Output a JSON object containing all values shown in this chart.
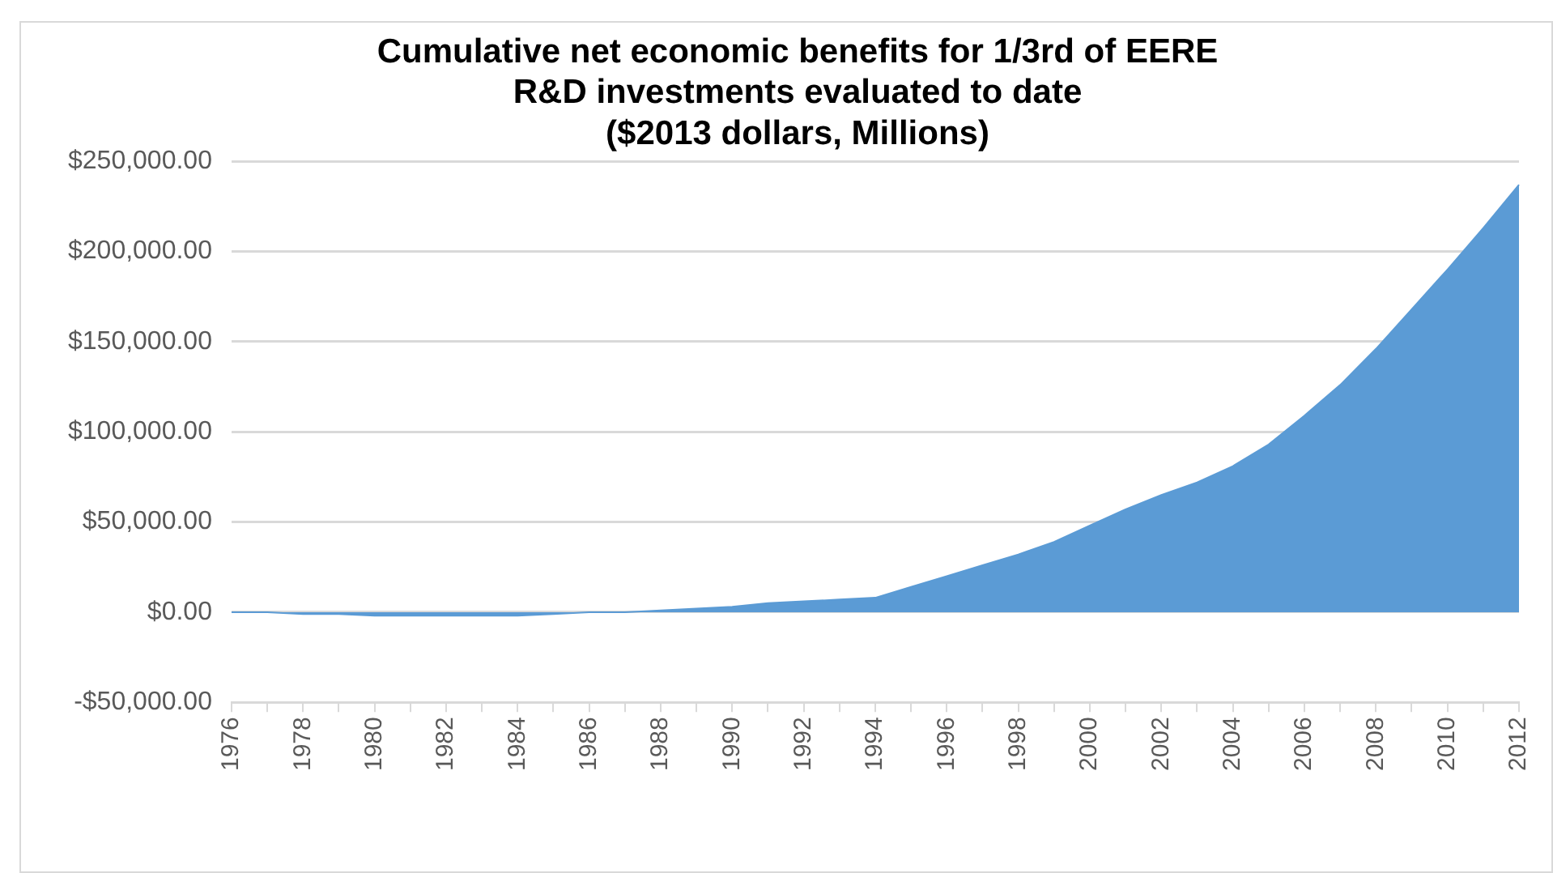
{
  "chart_data": {
    "type": "area",
    "title": [
      "Cumulative net economic benefits for 1/3rd of EERE",
      "R&D investments evaluated to date",
      "($2013 dollars, Millions)"
    ],
    "categories": [
      "1976",
      null,
      "1978",
      null,
      "1980",
      null,
      "1982",
      null,
      "1984",
      null,
      "1986",
      null,
      "1988",
      null,
      "1990",
      null,
      "1992",
      null,
      "1994",
      null,
      "1996",
      null,
      "1998",
      null,
      "2000",
      null,
      "2002",
      null,
      "2004",
      null,
      "2006",
      null,
      "2008",
      null,
      "2010",
      null,
      "2012"
    ],
    "series": [
      {
        "color": "#5b9bd5",
        "values": [
          0,
          0,
          -1000,
          -1000,
          -2000,
          -2000,
          -2000,
          -2000,
          -2000,
          -1000,
          0,
          0,
          1000,
          2000,
          3000,
          5000,
          6000,
          7000,
          8000,
          14000,
          20000,
          26000,
          32000,
          39000,
          48000,
          57000,
          65000,
          72000,
          81000,
          93000,
          109000,
          126000,
          146000,
          168000,
          190000,
          213000,
          237000
        ]
      }
    ],
    "ylim": [
      -50000,
      250000
    ],
    "yticks": [
      {
        "value": -50000,
        "label": "-$50,000.00"
      },
      {
        "value": 0,
        "label": "$0.00"
      },
      {
        "value": 50000,
        "label": "$50,000.00"
      },
      {
        "value": 100000,
        "label": "$100,000.00"
      },
      {
        "value": 150000,
        "label": "$150,000.00"
      },
      {
        "value": 200000,
        "label": "$200,000.00"
      },
      {
        "value": 250000,
        "label": "$250,000.00"
      }
    ],
    "grid": "y",
    "legend": false
  }
}
